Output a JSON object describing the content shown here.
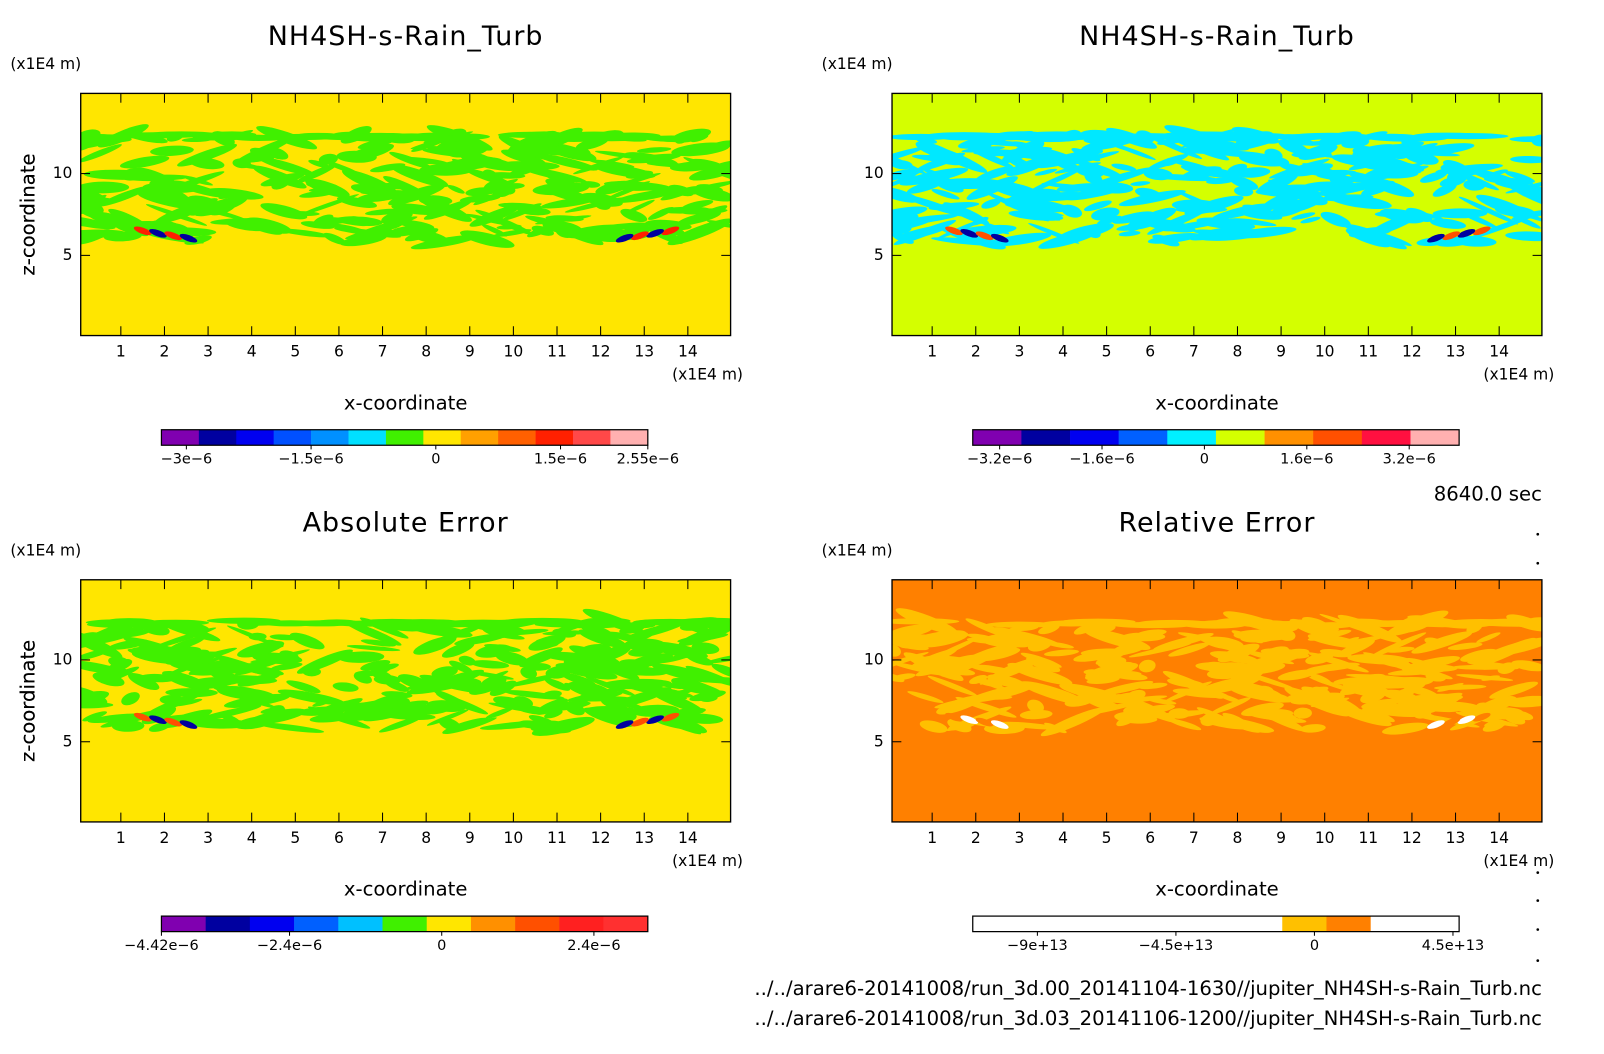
{
  "chart_data": [
    {
      "type": "contour",
      "title": "NH4SH-s-Rain_Turb",
      "xlabel": "x-coordinate",
      "ylabel": "z-coordinate",
      "xunit": "(x1E4 m)",
      "yunit": "(x1E4 m)",
      "xlim": [
        0.08,
        14.98
      ],
      "ylim": [
        0.1,
        14.9
      ],
      "xticks": [
        1,
        2,
        3,
        4,
        5,
        6,
        7,
        8,
        9,
        10,
        11,
        12,
        13,
        14
      ],
      "yticks": [
        5,
        10
      ],
      "field_color": "#ffe600",
      "pattern_color": "#40f000",
      "colorbar": {
        "lim": [
          -3.3e-06,
          2.55e-06
        ],
        "colors": [
          "#8000b0",
          "#0000a0",
          "#0000f0",
          "#0050ff",
          "#0090ff",
          "#00e0ff",
          "#40f000",
          "#ffe600",
          "#ffa000",
          "#ff6000",
          "#ff2000",
          "#ff4848",
          "#ffb0b0"
        ],
        "ticks": [
          {
            "value": -3e-06,
            "label": "−3e−6"
          },
          {
            "value": -1.5e-06,
            "label": "−1.5e−6"
          },
          0,
          {
            "value": 1.5e-06,
            "label": "1.5e−6"
          },
          {
            "value": 2.55e-06,
            "label": "2.55e−6"
          }
        ]
      }
    },
    {
      "type": "contour",
      "title": "NH4SH-s-Rain_Turb",
      "xlabel": "x-coordinate",
      "ylabel": "z-coordinate",
      "xunit": "(x1E4 m)",
      "yunit": "(x1E4 m)",
      "xlim": [
        0.08,
        14.98
      ],
      "ylim": [
        0.1,
        14.9
      ],
      "xticks": [
        1,
        2,
        3,
        4,
        5,
        6,
        7,
        8,
        9,
        10,
        11,
        12,
        13,
        14
      ],
      "yticks": [
        5,
        10
      ],
      "field_color": "#d4ff00",
      "pattern_color": "#00e8ff",
      "colorbar": {
        "lim": [
          -3.62e-06,
          3.98e-06
        ],
        "colors": [
          "#8000b0",
          "#0000a0",
          "#0000f0",
          "#0060ff",
          "#00f0ff",
          "#d4ff00",
          "#ff9000",
          "#ff5000",
          "#ff1040",
          "#ffb0b0"
        ],
        "ticks": [
          {
            "value": -3.2e-06,
            "label": "−3.2e−6"
          },
          {
            "value": -1.6e-06,
            "label": "−1.6e−6"
          },
          0,
          {
            "value": 1.6e-06,
            "label": "1.6e−6"
          },
          {
            "value": 3.2e-06,
            "label": "3.2e−6"
          }
        ]
      }
    },
    {
      "type": "contour",
      "title": "Absolute Error",
      "xlabel": "x-coordinate",
      "ylabel": "z-coordinate",
      "xunit": "(x1E4 m)",
      "yunit": "(x1E4 m)",
      "xlim": [
        0.08,
        14.98
      ],
      "ylim": [
        0.1,
        14.9
      ],
      "xticks": [
        1,
        2,
        3,
        4,
        5,
        6,
        7,
        8,
        9,
        10,
        11,
        12,
        13,
        14
      ],
      "yticks": [
        5,
        10
      ],
      "field_color": "#ffe600",
      "pattern_color": "#40f000",
      "colorbar": {
        "lim": [
          -4.42e-06,
          3.25e-06
        ],
        "colors": [
          "#8000b0",
          "#0000a0",
          "#0000f0",
          "#0060ff",
          "#00c0ff",
          "#40f000",
          "#ffe600",
          "#ff9000",
          "#ff5000",
          "#ff2020",
          "#ff3030"
        ],
        "ticks": [
          {
            "value": -4.42e-06,
            "label": "−4.42e−6"
          },
          {
            "value": -2.4e-06,
            "label": "−2.4e−6"
          },
          0,
          {
            "value": 2.4e-06,
            "label": "2.4e−6"
          }
        ]
      }
    },
    {
      "type": "contour",
      "title": "Relative Error",
      "xlabel": "x-coordinate",
      "ylabel": "z-coordinate",
      "xunit": "(x1E4 m)",
      "yunit": "(x1E4 m)",
      "xlim": [
        0.08,
        14.98
      ],
      "ylim": [
        0.1,
        14.9
      ],
      "xticks": [
        1,
        2,
        3,
        4,
        5,
        6,
        7,
        8,
        9,
        10,
        11,
        12,
        13,
        14
      ],
      "yticks": [
        5,
        10
      ],
      "field_color": "#ff8000",
      "pattern_color": "#ffc000",
      "colorbar": {
        "lim": [
          -111000000000000.0,
          47000000000000.0
        ],
        "colors": [
          "#ffffff",
          "#ffffff",
          "#ffffff",
          "#ffffff",
          "#ffffff",
          "#ffffff",
          "#ffffff",
          "#ffc000",
          "#ff8000",
          "#ffffff",
          "#ffffff"
        ],
        "ticks": [
          {
            "value": -90000000000000.0,
            "label": "−9e+13"
          },
          {
            "value": -45000000000000.0,
            "label": "−4.5e+13"
          },
          0,
          {
            "value": 45000000000000.0,
            "label": "4.5e+13"
          }
        ]
      }
    }
  ],
  "time": "8640.0 sec",
  "files": [
    "../../arare6-20141008/run_3d.00_20141104-1630//jupiter_NH4SH-s-Rain_Turb.nc",
    "../../arare6-20141008/run_3d.03_20141106-1200//jupiter_NH4SH-s-Rain_Turb.nc"
  ]
}
